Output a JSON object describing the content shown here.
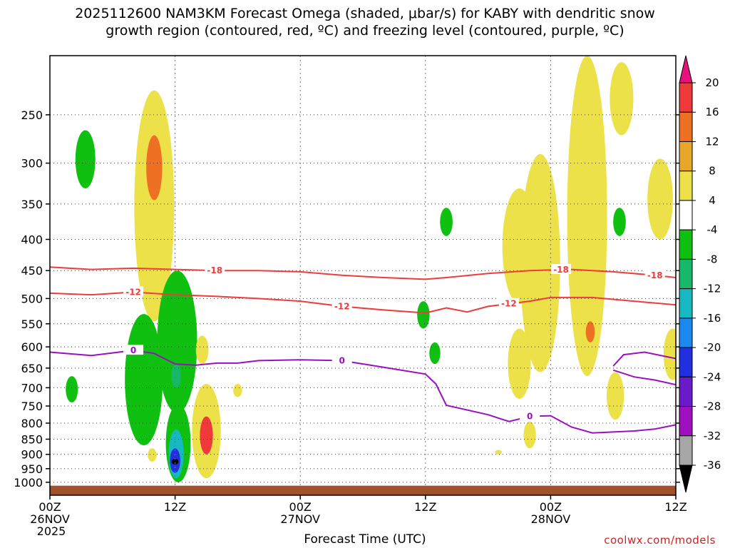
{
  "title": {
    "line1": "2025112600 NAM3KM Forecast Omega (shaded, μbar/s) for KABY with dendritic snow",
    "line2": "growth region (contoured, red, ºC) and freezing level (contoured, purple, ºC)"
  },
  "footer": {
    "credit": "coolwx.com/models"
  },
  "chart_data": {
    "type": "heatmap",
    "title": "2025112600 NAM3KM Forecast Omega (shaded, μbar/s) for KABY with dendritic snow growth region (contoured, red, ºC) and freezing level (contoured, purple, ºC)",
    "xlabel": "Forecast Time (UTC)",
    "ylabel": "",
    "x_ticks": [
      {
        "hour": 0,
        "label": [
          "00Z",
          "26NOV",
          "2025"
        ]
      },
      {
        "hour": 12,
        "label": [
          "12Z"
        ]
      },
      {
        "hour": 24,
        "label": [
          "00Z",
          "27NOV"
        ]
      },
      {
        "hour": 36,
        "label": [
          "12Z"
        ]
      },
      {
        "hour": 48,
        "label": [
          "00Z",
          "28NOV"
        ]
      },
      {
        "hour": 60,
        "label": [
          "12Z"
        ]
      }
    ],
    "xlim_hours": [
      0,
      60
    ],
    "y_axis": {
      "scale": "log-pressure (hPa)",
      "ylim": [
        1050,
        200
      ],
      "ticks": [
        250,
        300,
        350,
        400,
        450,
        500,
        550,
        600,
        650,
        700,
        750,
        800,
        850,
        900,
        950,
        1000
      ]
    },
    "colorbar": {
      "labels": [
        20,
        16,
        12,
        8,
        4,
        -4,
        -8,
        -12,
        -16,
        -20,
        -24,
        -28,
        -32,
        -36
      ],
      "colors": {
        "gt20": "#e8107a",
        "16_20": "#f03a3a",
        "12_16": "#ee7022",
        "8_12": "#e8a62a",
        "4_8": "#ede14a",
        "m4_4": "#ffffff",
        "m8_m4": "#10c010",
        "m12_m8": "#18b86a",
        "m16_m12": "#18b8c0",
        "m20_m16": "#1a88ee",
        "m24_m20": "#2030e0",
        "m28_m24": "#6a1ac8",
        "m32_m28": "#a010c0",
        "m36_m32": "#a6a6a6",
        "lt36": "#000000"
      }
    },
    "omega_regions": [
      {
        "level": -8,
        "hour": 3.4,
        "p_top": 265,
        "p_bot": 330
      },
      {
        "level": -8,
        "hour": 2.1,
        "p_top": 670,
        "p_bot": 740
      },
      {
        "level": 8,
        "hour": 10.0,
        "p_top": 228,
        "p_bot": 545
      },
      {
        "level": 12,
        "hour": 10.0,
        "p_top": 270,
        "p_bot": 345
      },
      {
        "level": -8,
        "hour": 9.0,
        "p_top": 530,
        "p_bot": 870
      },
      {
        "level": -8,
        "hour": 12.2,
        "p_top": 450,
        "p_bot": 770
      },
      {
        "level": -12,
        "hour": 12.1,
        "p_top": 640,
        "p_bot": 700
      },
      {
        "level": -8,
        "hour": 12.3,
        "p_top": 745,
        "p_bot": 1000
      },
      {
        "level": -16,
        "hour": 12.1,
        "p_top": 820,
        "p_bot": 985
      },
      {
        "level": -24,
        "hour": 12.0,
        "p_top": 880,
        "p_bot": 965
      },
      {
        "level": -36,
        "hour": 12.0,
        "p_top": 915,
        "p_bot": 935
      },
      {
        "level": 8,
        "hour": 15.0,
        "p_top": 690,
        "p_bot": 985
      },
      {
        "level": 16,
        "hour": 15.0,
        "p_top": 780,
        "p_bot": 900
      },
      {
        "level": 8,
        "hour": 14.6,
        "p_top": 575,
        "p_bot": 640
      },
      {
        "level": 8,
        "hour": 18.0,
        "p_top": 690,
        "p_bot": 725
      },
      {
        "level": 8,
        "hour": 9.8,
        "p_top": 880,
        "p_bot": 925
      },
      {
        "level": -8,
        "hour": 38.0,
        "p_top": 355,
        "p_bot": 395
      },
      {
        "level": -8,
        "hour": 35.8,
        "p_top": 505,
        "p_bot": 560
      },
      {
        "level": -8,
        "hour": 36.9,
        "p_top": 590,
        "p_bot": 640
      },
      {
        "level": 8,
        "hour": 45.0,
        "p_top": 330,
        "p_bot": 510
      },
      {
        "level": 8,
        "hour": 45.0,
        "p_top": 560,
        "p_bot": 730
      },
      {
        "level": 8,
        "hour": 47.0,
        "p_top": 290,
        "p_bot": 660
      },
      {
        "level": 8,
        "hour": 51.5,
        "p_top": 200,
        "p_bot": 670
      },
      {
        "level": 8,
        "hour": 54.8,
        "p_top": 205,
        "p_bot": 270
      },
      {
        "level": 12,
        "hour": 51.8,
        "p_top": 545,
        "p_bot": 590
      },
      {
        "level": -8,
        "hour": 54.6,
        "p_top": 355,
        "p_bot": 395
      },
      {
        "level": 8,
        "hour": 58.5,
        "p_top": 295,
        "p_bot": 400
      },
      {
        "level": 8,
        "hour": 54.2,
        "p_top": 660,
        "p_bot": 790
      },
      {
        "level": 8,
        "hour": 59.7,
        "p_top": 560,
        "p_bot": 680
      },
      {
        "level": 8,
        "hour": 46.0,
        "p_top": 795,
        "p_bot": 880
      },
      {
        "level": 8,
        "hour": 43.0,
        "p_top": 885,
        "p_bot": 900
      }
    ],
    "contours": [
      {
        "value": -18,
        "label": "-18",
        "color": "#ee3c3c",
        "points": [
          [
            0,
            444
          ],
          [
            4,
            448
          ],
          [
            8,
            446
          ],
          [
            12,
            448
          ],
          [
            16,
            450
          ],
          [
            20,
            450
          ],
          [
            24,
            452
          ],
          [
            28,
            458
          ],
          [
            32,
            462
          ],
          [
            36,
            465
          ],
          [
            38,
            462
          ],
          [
            42,
            455
          ],
          [
            46,
            450
          ],
          [
            50,
            448
          ],
          [
            54,
            452
          ],
          [
            58,
            458
          ],
          [
            60,
            462
          ]
        ],
        "label_at": [
          15.8,
          49.0,
          58.0
        ]
      },
      {
        "value": -12,
        "label": "-12",
        "color": "#ee3c3c",
        "points": [
          [
            0,
            490
          ],
          [
            4,
            493
          ],
          [
            8,
            488
          ],
          [
            12,
            493
          ],
          [
            16,
            496
          ],
          [
            20,
            500
          ],
          [
            24,
            505
          ],
          [
            28,
            515
          ],
          [
            32,
            522
          ],
          [
            36,
            528
          ],
          [
            38,
            518
          ],
          [
            40,
            526
          ],
          [
            42,
            515
          ],
          [
            44,
            510
          ],
          [
            46,
            505
          ],
          [
            48,
            498
          ],
          [
            52,
            498
          ],
          [
            56,
            505
          ],
          [
            60,
            512
          ]
        ],
        "label_at": [
          8.0,
          28.0,
          44.0
        ]
      },
      {
        "value": 0,
        "label": "0",
        "color": "#9a10c0",
        "points": [
          [
            0,
            612
          ],
          [
            4,
            620
          ],
          [
            8,
            608
          ],
          [
            10,
            615
          ],
          [
            12,
            640
          ],
          [
            14,
            643
          ],
          [
            16,
            638
          ],
          [
            18,
            638
          ],
          [
            20,
            632
          ],
          [
            24,
            630
          ],
          [
            28,
            632
          ],
          [
            32,
            648
          ],
          [
            36,
            665
          ],
          [
            37,
            690
          ],
          [
            38,
            748
          ],
          [
            42,
            775
          ],
          [
            44,
            795
          ],
          [
            46,
            780
          ],
          [
            48,
            778
          ],
          [
            50,
            812
          ],
          [
            52,
            830
          ],
          [
            56,
            824
          ],
          [
            58,
            818
          ],
          [
            60,
            805
          ]
        ],
        "label_at": [
          8.0,
          28.0,
          46.0
        ]
      },
      {
        "value": 0,
        "label": "",
        "color": "#9a10c0",
        "points": [
          [
            54,
            645
          ],
          [
            55,
            618
          ],
          [
            57,
            612
          ],
          [
            60,
            627
          ]
        ]
      },
      {
        "value": 0,
        "label": "",
        "color": "#9a10c0",
        "points": [
          [
            54,
            655
          ],
          [
            56,
            672
          ],
          [
            58,
            680
          ],
          [
            60,
            692
          ]
        ]
      }
    ],
    "terrain": {
      "surface_pressure_hPa": 1013,
      "color": "#a0522d"
    },
    "grid": true
  }
}
